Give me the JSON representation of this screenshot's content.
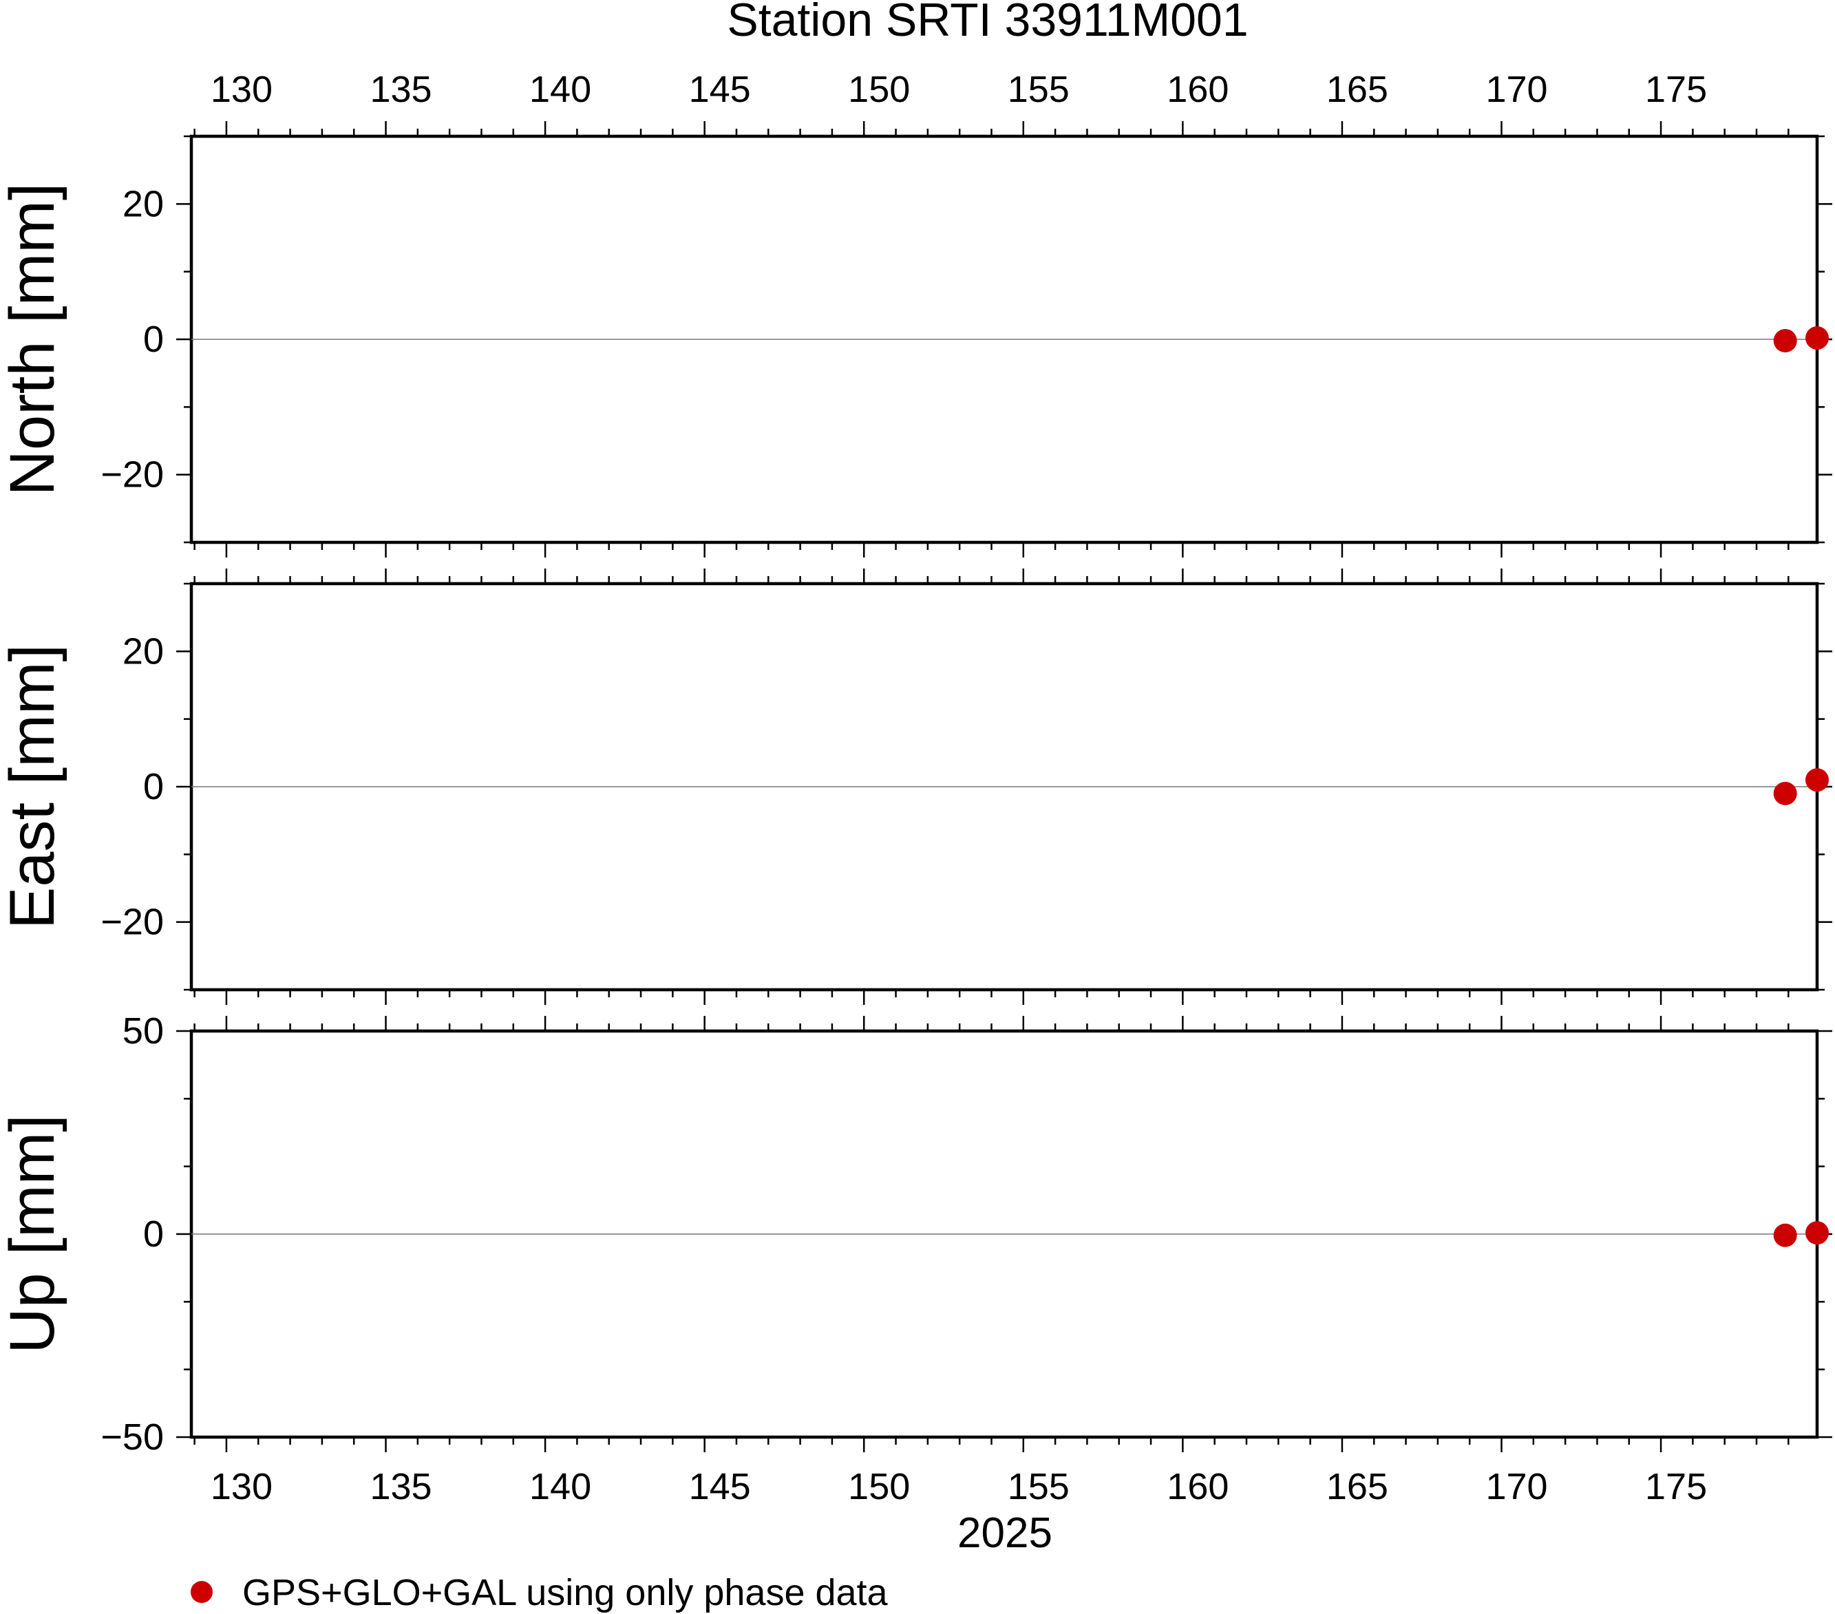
{
  "chart_data": {
    "type": "scatter",
    "title": "Station SRTI 33911M001",
    "xlabel": "2025",
    "xlim": [
      128.9,
      179.9
    ],
    "x_ticks": [
      130,
      135,
      140,
      145,
      150,
      155,
      160,
      165,
      170,
      175
    ],
    "x_tick_labels": [
      "130",
      "135",
      "140",
      "145",
      "150",
      "155",
      "160",
      "165",
      "170",
      "175"
    ],
    "marker_color": "#cc0000",
    "legend": {
      "label": "GPS+GLO+GAL using only phase data",
      "position": "bottom-left"
    },
    "panels": [
      {
        "ylabel": "North [mm]",
        "ylim": [
          -30,
          30
        ],
        "y_ticks": [
          20,
          0,
          -20
        ],
        "y_tick_labels": [
          "20",
          "0",
          "−20"
        ],
        "points": [
          {
            "x": 178.9,
            "y": -0.2
          },
          {
            "x": 179.9,
            "y": 0.2
          }
        ]
      },
      {
        "ylabel": "East [mm]",
        "ylim": [
          -30,
          30
        ],
        "y_ticks": [
          20,
          0,
          -20
        ],
        "y_tick_labels": [
          "20",
          "0",
          "−20"
        ],
        "points": [
          {
            "x": 178.9,
            "y": -1.0
          },
          {
            "x": 179.9,
            "y": 1.0
          }
        ]
      },
      {
        "ylabel": "Up [mm]",
        "ylim": [
          -50,
          50
        ],
        "y_ticks": [
          50,
          0,
          -50
        ],
        "y_tick_labels": [
          "50",
          "0",
          "−50"
        ],
        "points": [
          {
            "x": 178.9,
            "y": -0.3
          },
          {
            "x": 179.9,
            "y": 0.3
          }
        ]
      }
    ]
  }
}
